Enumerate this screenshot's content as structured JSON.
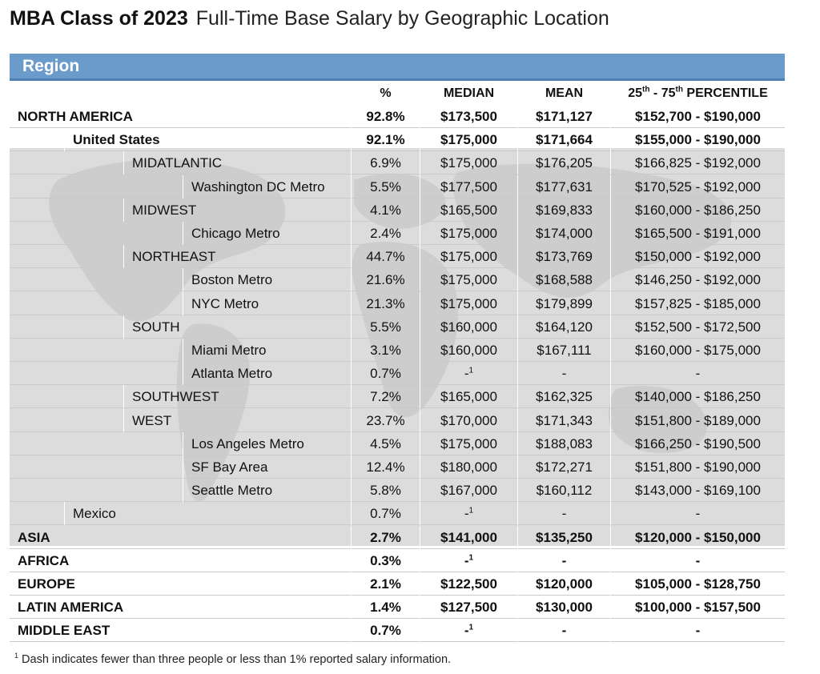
{
  "title": {
    "bold": "MBA Class of 2023",
    "light": "Full-Time Base Salary by Geographic Location"
  },
  "region_label": "Region",
  "headers": {
    "pct": "%",
    "median": "MEDIAN",
    "mean": "MEAN",
    "pct_prefix": "25",
    "pct_sup1": "th",
    "pct_mid": " - 75",
    "pct_sup2": "th",
    "pct_suffix": " PERCENTILE"
  },
  "rows": [
    {
      "name": "NORTH AMERICA",
      "level": 0,
      "bold": true,
      "pct": "92.8%",
      "median": "$173,500",
      "median_fn": "",
      "mean": "$171,127",
      "range": "$152,700 - $190,000"
    },
    {
      "name": "United States",
      "level": 1,
      "bold": true,
      "pct": "92.1%",
      "median": "$175,000",
      "median_fn": "",
      "mean": "$171,664",
      "range": "$155,000 - $190,000"
    },
    {
      "name": "MIDATLANTIC",
      "level": 2,
      "bold": false,
      "pct": "6.9%",
      "median": "$175,000",
      "median_fn": "",
      "mean": "$176,205",
      "range": "$166,825 - $192,000"
    },
    {
      "name": "Washington DC Metro",
      "level": 3,
      "bold": false,
      "pct": "5.5%",
      "median": "$177,500",
      "median_fn": "",
      "mean": "$177,631",
      "range": "$170,525 - $192,000"
    },
    {
      "name": "MIDWEST",
      "level": 2,
      "bold": false,
      "pct": "4.1%",
      "median": "$165,500",
      "median_fn": "",
      "mean": "$169,833",
      "range": "$160,000 - $186,250"
    },
    {
      "name": "Chicago Metro",
      "level": 3,
      "bold": false,
      "pct": "2.4%",
      "median": "$175,000",
      "median_fn": "",
      "mean": "$174,000",
      "range": "$165,500 - $191,000"
    },
    {
      "name": "NORTHEAST",
      "level": 2,
      "bold": false,
      "pct": "44.7%",
      "median": "$175,000",
      "median_fn": "",
      "mean": "$173,769",
      "range": "$150,000 - $192,000"
    },
    {
      "name": "Boston Metro",
      "level": 3,
      "bold": false,
      "pct": "21.6%",
      "median": "$175,000",
      "median_fn": "",
      "mean": "$168,588",
      "range": "$146,250 - $192,000"
    },
    {
      "name": "NYC Metro",
      "level": 3,
      "bold": false,
      "pct": "21.3%",
      "median": "$175,000",
      "median_fn": "",
      "mean": "$179,899",
      "range": "$157,825 - $185,000"
    },
    {
      "name": "SOUTH",
      "level": 2,
      "bold": false,
      "pct": "5.5%",
      "median": "$160,000",
      "median_fn": "",
      "mean": "$164,120",
      "range": "$152,500 - $172,500"
    },
    {
      "name": "Miami Metro",
      "level": 3,
      "bold": false,
      "pct": "3.1%",
      "median": "$160,000",
      "median_fn": "",
      "mean": "$167,111",
      "range": "$160,000 - $175,000"
    },
    {
      "name": "Atlanta Metro",
      "level": 3,
      "bold": false,
      "pct": "0.7%",
      "median": "-",
      "median_fn": "1",
      "mean": "-",
      "range": "-"
    },
    {
      "name": "SOUTHWEST",
      "level": 2,
      "bold": false,
      "pct": "7.2%",
      "median": "$165,000",
      "median_fn": "",
      "mean": "$162,325",
      "range": "$140,000 - $186,250"
    },
    {
      "name": "WEST",
      "level": 2,
      "bold": false,
      "pct": "23.7%",
      "median": "$170,000",
      "median_fn": "",
      "mean": "$171,343",
      "range": "$151,800 - $189,000"
    },
    {
      "name": "Los Angeles Metro",
      "level": 3,
      "bold": false,
      "pct": "4.5%",
      "median": "$175,000",
      "median_fn": "",
      "mean": "$188,083",
      "range": "$166,250 - $190,500"
    },
    {
      "name": "SF Bay Area",
      "level": 3,
      "bold": false,
      "pct": "12.4%",
      "median": "$180,000",
      "median_fn": "",
      "mean": "$172,271",
      "range": "$151,800 - $190,000"
    },
    {
      "name": "Seattle Metro",
      "level": 3,
      "bold": false,
      "pct": "5.8%",
      "median": "$167,000",
      "median_fn": "",
      "mean": "$160,112",
      "range": "$143,000 - $169,100"
    },
    {
      "name": "Mexico",
      "level": 1,
      "bold": false,
      "pct": "0.7%",
      "median": "-",
      "median_fn": "1",
      "mean": "-",
      "range": "-"
    },
    {
      "name": "ASIA",
      "level": 0,
      "bold": true,
      "pct": "2.7%",
      "median": "$141,000",
      "median_fn": "",
      "mean": "$135,250",
      "range": "$120,000 - $150,000"
    },
    {
      "name": "AFRICA",
      "level": 0,
      "bold": true,
      "pct": "0.3%",
      "median": "-",
      "median_fn": "1",
      "mean": "-",
      "range": "-"
    },
    {
      "name": "EUROPE",
      "level": 0,
      "bold": true,
      "pct": "2.1%",
      "median": "$122,500",
      "median_fn": "",
      "mean": "$120,000",
      "range": "$105,000 - $128,750"
    },
    {
      "name": "LATIN AMERICA",
      "level": 0,
      "bold": true,
      "pct": "1.4%",
      "median": "$127,500",
      "median_fn": "",
      "mean": "$130,000",
      "range": "$100,000 - $157,500"
    },
    {
      "name": "MIDDLE EAST",
      "level": 0,
      "bold": true,
      "pct": "0.7%",
      "median": "-",
      "median_fn": "1",
      "mean": "-",
      "range": "-"
    }
  ],
  "footnote": {
    "mark": "1",
    "text": " Dash indicates fewer than three people or less than 1% reported salary information."
  },
  "colors": {
    "region_bar": "#6b9bca",
    "panel": "#dcdcdc"
  }
}
